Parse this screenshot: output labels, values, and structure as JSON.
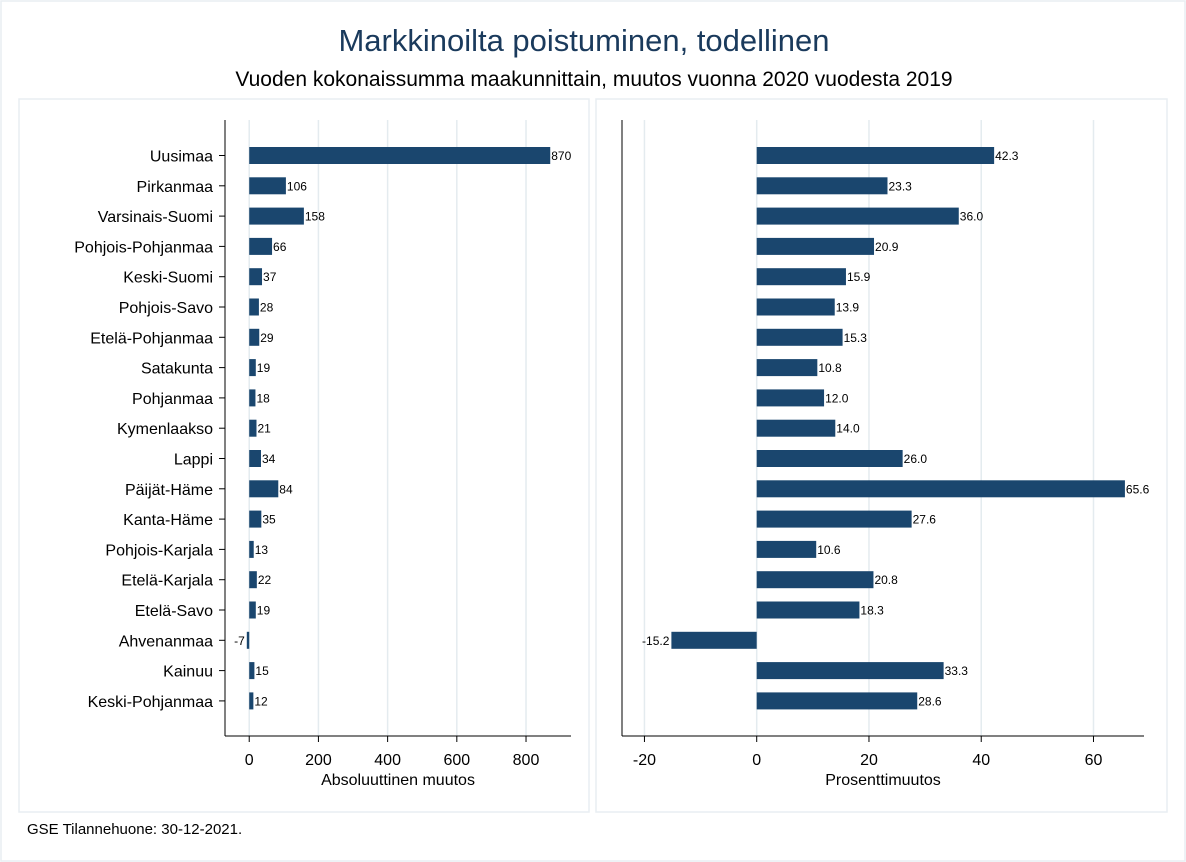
{
  "title": "Markkinoilta poistuminen, todellinen",
  "subtitle": "Vuoden kokonaissumma maakunnittain, muutos vuonna 2020 vuodesta 2019",
  "note": "GSE Tilannehuone: 30-12-2021.",
  "colors": {
    "bar": "#1a466e",
    "title": "#1a3a5c",
    "grid": "#e4ebef",
    "panel_border": "#e8eef2"
  },
  "chart_data": [
    {
      "type": "bar",
      "orientation": "horizontal",
      "xlabel": "Absoluuttinen muutos",
      "xlim": [
        -70,
        930
      ],
      "xticks": [
        0,
        200,
        400,
        600,
        800
      ],
      "grid": true,
      "categories": [
        "Uusimaa",
        "Pirkanmaa",
        "Varsinais-Suomi",
        "Pohjois-Pohjanmaa",
        "Keski-Suomi",
        "Pohjois-Savo",
        "Etelä-Pohjanmaa",
        "Satakunta",
        "Pohjanmaa",
        "Kymenlaakso",
        "Lappi",
        "Päijät-Häme",
        "Kanta-Häme",
        "Pohjois-Karjala",
        "Etelä-Karjala",
        "Etelä-Savo",
        "Ahvenanmaa",
        "Kainuu",
        "Keski-Pohjanmaa"
      ],
      "values": [
        870,
        106,
        158,
        66,
        37,
        28,
        29,
        19,
        18,
        21,
        34,
        84,
        35,
        13,
        22,
        19,
        -7,
        15,
        12
      ],
      "data_labels": [
        "870",
        "106",
        "158",
        "66",
        "37",
        "28",
        "29",
        "19",
        "18",
        "21",
        "34",
        "84",
        "35",
        "13",
        "22",
        "19",
        "-7",
        "15",
        "12"
      ]
    },
    {
      "type": "bar",
      "orientation": "horizontal",
      "xlabel": "Prosenttimuutos",
      "xlim": [
        -24,
        69
      ],
      "xticks": [
        -20,
        0,
        20,
        40,
        60
      ],
      "grid": true,
      "categories": [
        "Uusimaa",
        "Pirkanmaa",
        "Varsinais-Suomi",
        "Pohjois-Pohjanmaa",
        "Keski-Suomi",
        "Pohjois-Savo",
        "Etelä-Pohjanmaa",
        "Satakunta",
        "Pohjanmaa",
        "Kymenlaakso",
        "Lappi",
        "Päijät-Häme",
        "Kanta-Häme",
        "Pohjois-Karjala",
        "Etelä-Karjala",
        "Etelä-Savo",
        "Ahvenanmaa",
        "Kainuu",
        "Keski-Pohjanmaa"
      ],
      "values": [
        42.3,
        23.3,
        36.0,
        20.9,
        15.9,
        13.9,
        15.3,
        10.8,
        12.0,
        14.0,
        26.0,
        65.6,
        27.6,
        10.6,
        20.8,
        18.3,
        -15.2,
        33.3,
        28.6
      ],
      "data_labels": [
        "42.3",
        "23.3",
        "36.0",
        "20.9",
        "15.9",
        "13.9",
        "15.3",
        "10.8",
        "12.0",
        "14.0",
        "26.0",
        "65.6",
        "27.6",
        "10.6",
        "20.8",
        "18.3",
        "-15.2",
        "33.3",
        "28.6"
      ]
    }
  ]
}
